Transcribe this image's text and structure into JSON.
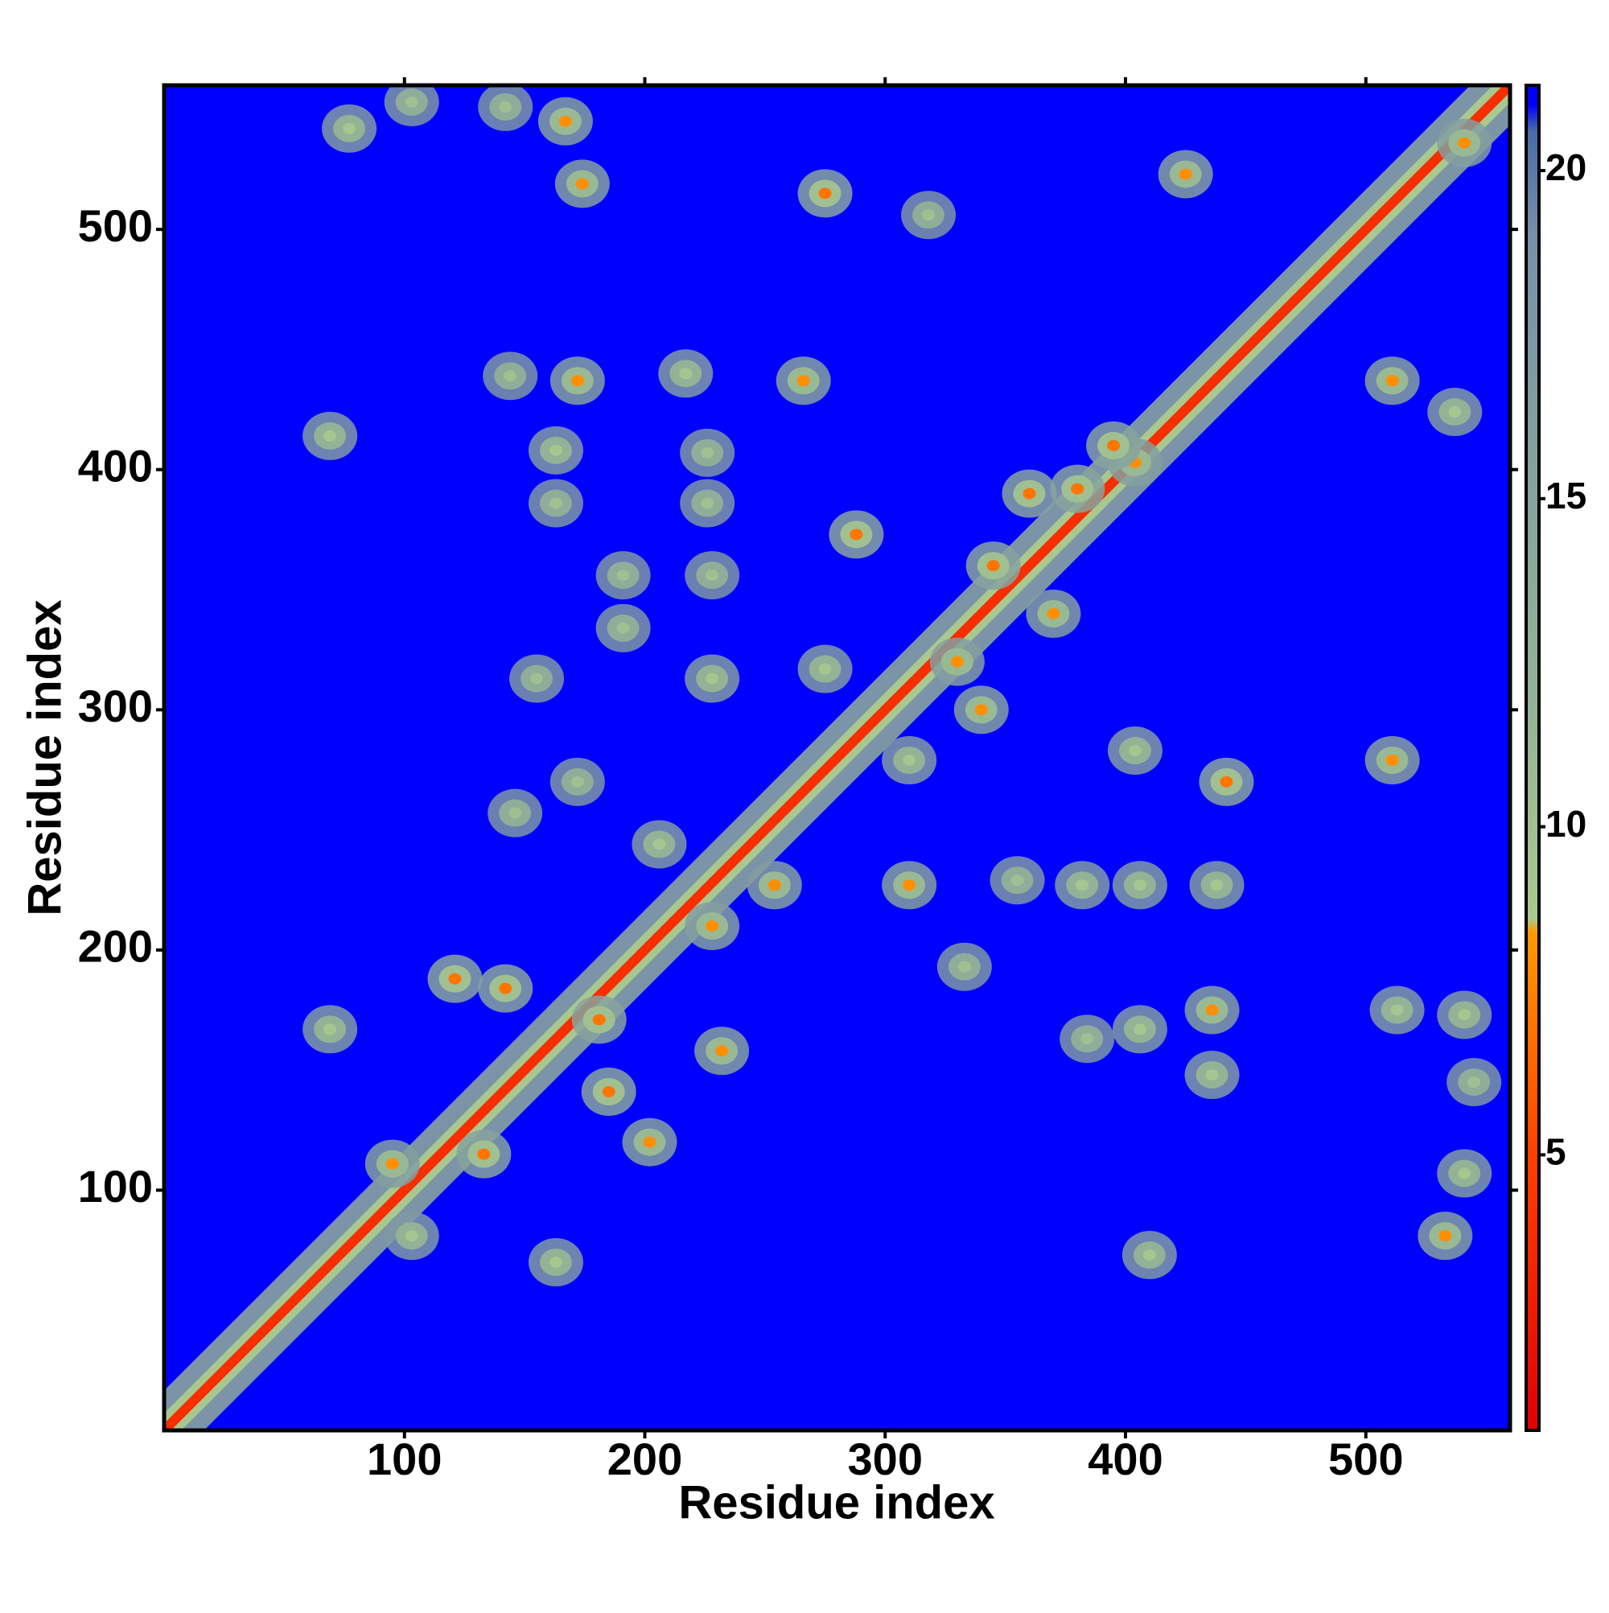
{
  "chart_data": {
    "type": "contact_map",
    "x_label": "Residue index",
    "y_label": "Residue index",
    "xlim": [
      0,
      560
    ],
    "ylim": [
      0,
      560
    ],
    "xticks": [
      100,
      200,
      300,
      400,
      500
    ],
    "yticks": [
      100,
      200,
      300,
      400,
      500
    ],
    "clim": [
      0.8,
      21.3
    ],
    "colorbar_ticks": [
      5,
      10,
      15,
      20
    ],
    "colorscale": [
      [
        0.8,
        "#e00000"
      ],
      [
        5,
        "#ff4000"
      ],
      [
        8.4,
        "#ff9a00"
      ],
      [
        8.6,
        "#a9c98f"
      ],
      [
        12,
        "#93b296"
      ],
      [
        19,
        "#7890a8"
      ],
      [
        20.6,
        "#4a6aa8"
      ],
      [
        21,
        "#0000ff"
      ]
    ],
    "diagonal_value": 3.8,
    "contacts": {
      "x": [
        77,
        103,
        142,
        167,
        174,
        275,
        318,
        425,
        541,
        511,
        537,
        172,
        144,
        217,
        266,
        69,
        163,
        226,
        163,
        226,
        191,
        228,
        191,
        228,
        155,
        172,
        275,
        288,
        360,
        380,
        404,
        310,
        404,
        442,
        511,
        438,
        310,
        355,
        406,
        382,
        333,
        436,
        406,
        384,
        513,
        541,
        545,
        436,
        541,
        533,
        410,
        163,
        69,
        146,
        121,
        142,
        181,
        185,
        133,
        202,
        232,
        254,
        206,
        228,
        95,
        103,
        345,
        330,
        370,
        395,
        340
      ],
      "y": [
        542,
        553,
        551,
        545,
        519,
        515,
        506,
        523,
        536,
        437,
        424,
        437,
        439,
        440,
        437,
        414,
        408,
        407,
        386,
        386,
        356,
        356,
        334,
        313,
        313,
        270,
        317,
        373,
        390,
        392,
        403,
        279,
        283,
        270,
        279,
        227,
        227,
        229,
        227,
        227,
        193,
        175,
        167,
        163,
        175,
        173,
        145,
        148,
        107,
        81,
        73,
        70,
        167,
        257,
        188,
        184,
        171,
        141,
        115,
        120,
        158,
        227,
        244,
        210,
        111,
        81,
        360,
        320,
        340,
        410,
        300
      ],
      "values": [
        9,
        10,
        10,
        8,
        8,
        7,
        10,
        8,
        8,
        8,
        9,
        8,
        10,
        9,
        8,
        9,
        9,
        10,
        10,
        10,
        10,
        10,
        10,
        9,
        10,
        10,
        9,
        7,
        7,
        7,
        8,
        9,
        9,
        7,
        8,
        9,
        8,
        10,
        9,
        9,
        10,
        8,
        9,
        10,
        9,
        9,
        10,
        9,
        9,
        8,
        9,
        9,
        9,
        10,
        7,
        7,
        7,
        7,
        7,
        8,
        8,
        8,
        9,
        8,
        8,
        9,
        7,
        8,
        8,
        7,
        8
      ]
    }
  }
}
